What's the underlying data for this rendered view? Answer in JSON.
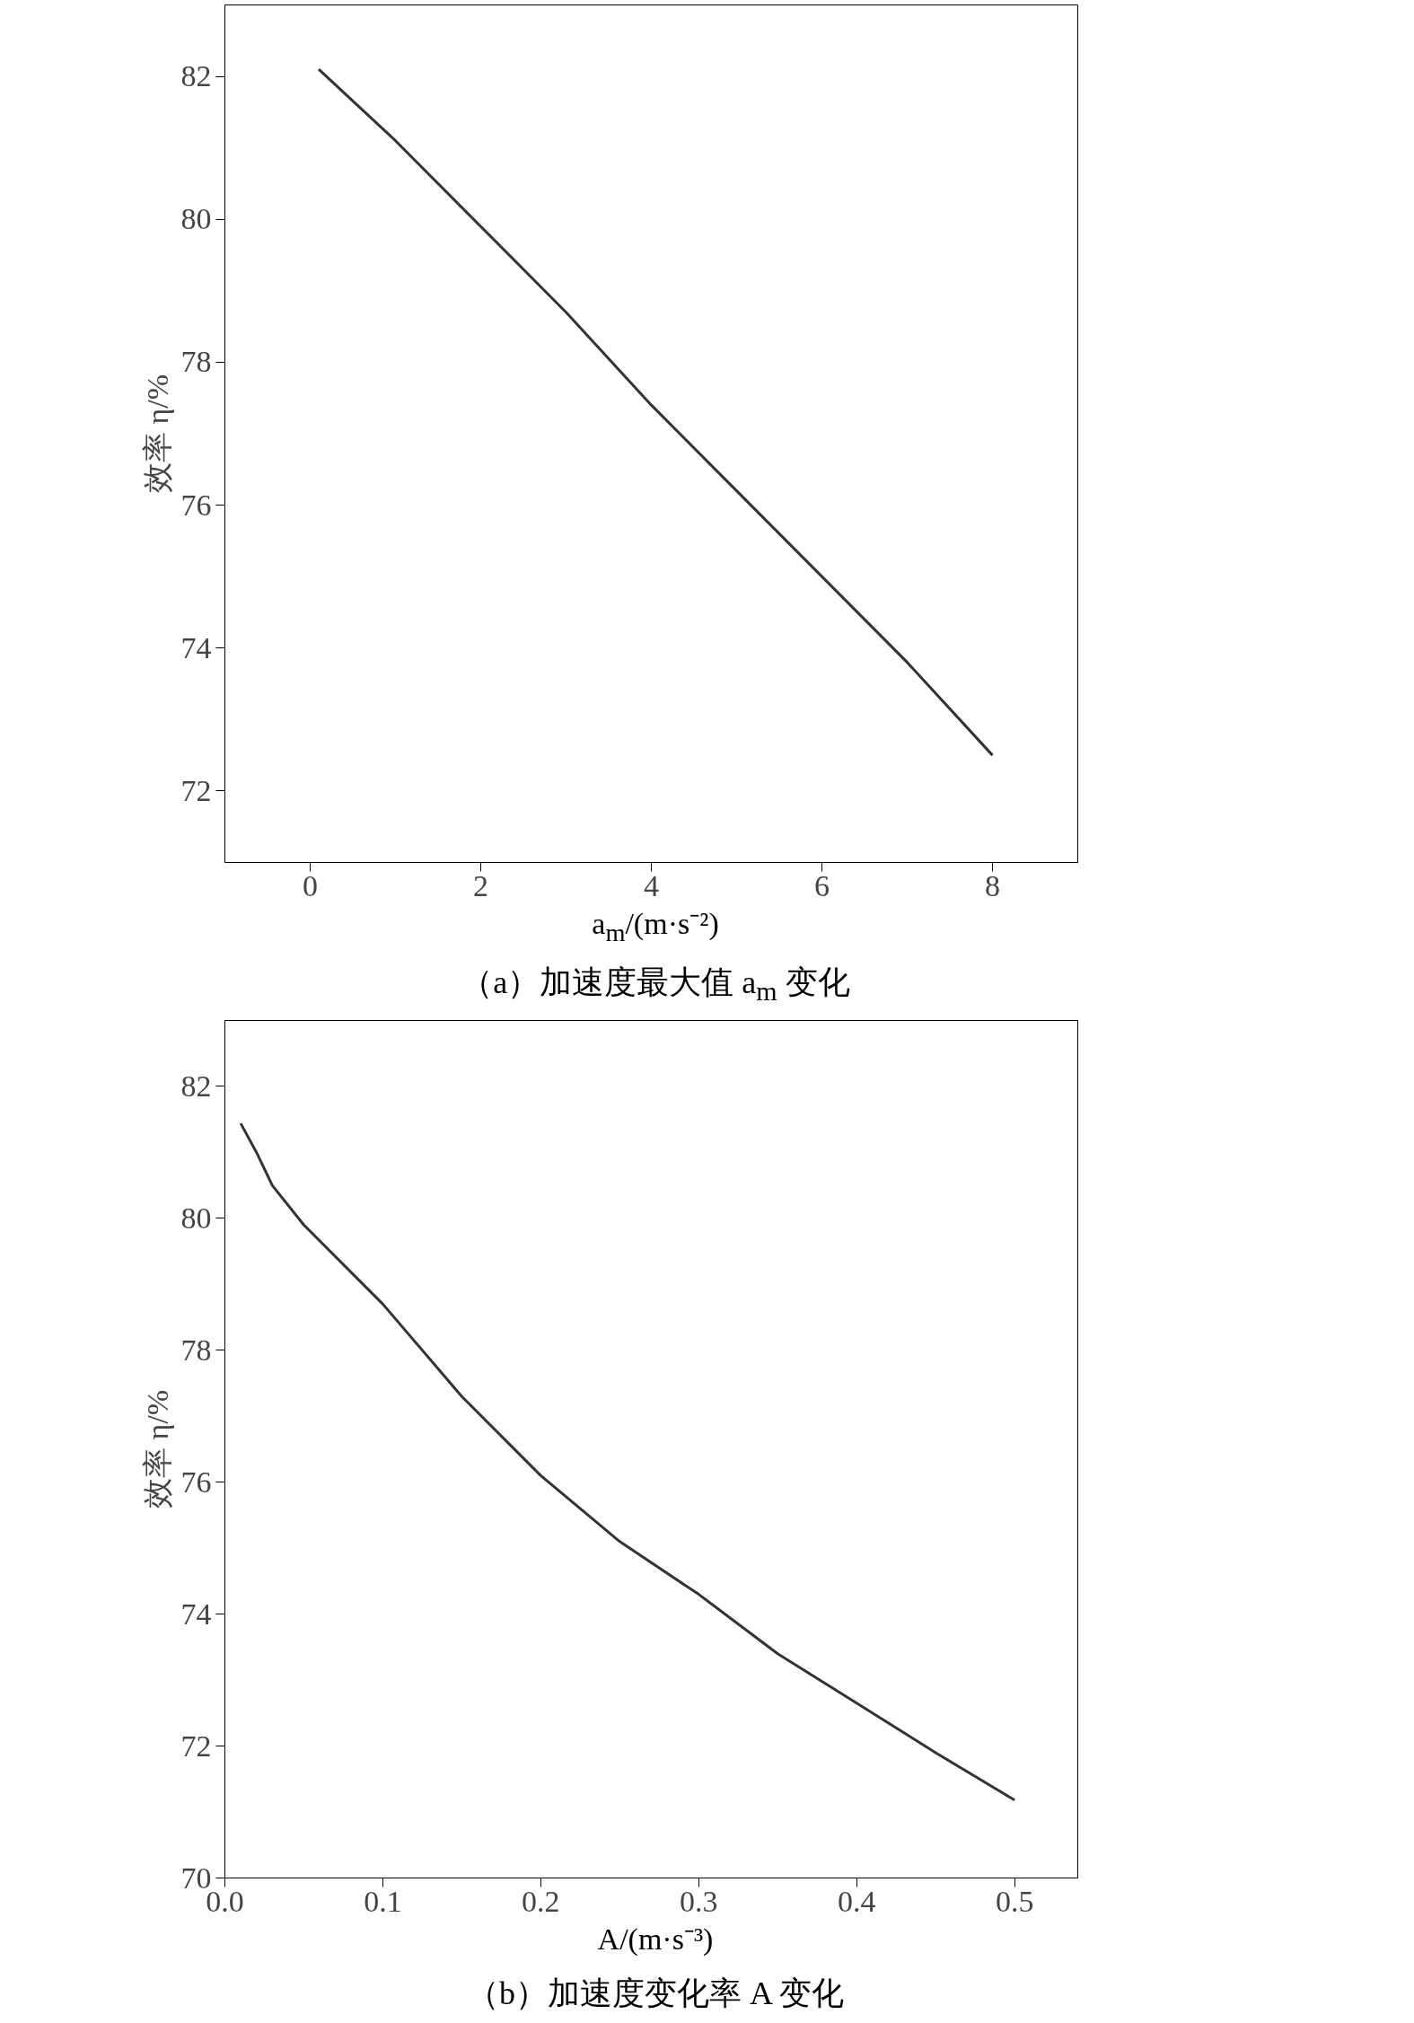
{
  "chart_data": [
    {
      "type": "line",
      "xlabel": "a$_{m}$/(m·s⁻²)",
      "ylabel": "效率 η/%",
      "annotations": [
        "（a）加速度最大值 a$_{m}$ 变化"
      ],
      "xlim": [
        -1,
        9
      ],
      "ylim": [
        71,
        83
      ],
      "xticks": [
        0,
        2,
        4,
        6,
        8
      ],
      "yticks": [
        72,
        74,
        76,
        78,
        80,
        82
      ],
      "grid": false,
      "line_style": "solid",
      "series": [
        {
          "color": "#333333",
          "x": [
            0.1,
            1,
            2,
            3,
            4,
            5,
            6,
            7,
            8
          ],
          "values": [
            82.1,
            81.1,
            79.9,
            78.7,
            77.4,
            76.2,
            75.0,
            73.8,
            72.5
          ]
        }
      ]
    },
    {
      "type": "line",
      "xlabel": "A/(m·s⁻³)",
      "ylabel": "效率 η/%",
      "annotations": [
        "（b）加速度变化率 A 变化"
      ],
      "xlim": [
        0,
        0.54
      ],
      "ylim": [
        70,
        83
      ],
      "xticks": [
        {
          "value": 0,
          "label": "0.0"
        },
        0.1,
        0.2,
        0.3,
        0.4,
        0.5
      ],
      "yticks": [
        70,
        72,
        74,
        76,
        78,
        80,
        82
      ],
      "grid": false,
      "line_style": "solid",
      "series": [
        {
          "color": "#333333",
          "x": [
            0.01,
            0.02,
            0.03,
            0.05,
            0.1,
            0.15,
            0.2,
            0.25,
            0.3,
            0.35,
            0.4,
            0.45,
            0.5
          ],
          "values": [
            81.44,
            81.0,
            80.5,
            79.9,
            78.7,
            77.3,
            76.1,
            75.1,
            74.3,
            73.4,
            72.65,
            71.9,
            71.18
          ]
        }
      ]
    }
  ]
}
